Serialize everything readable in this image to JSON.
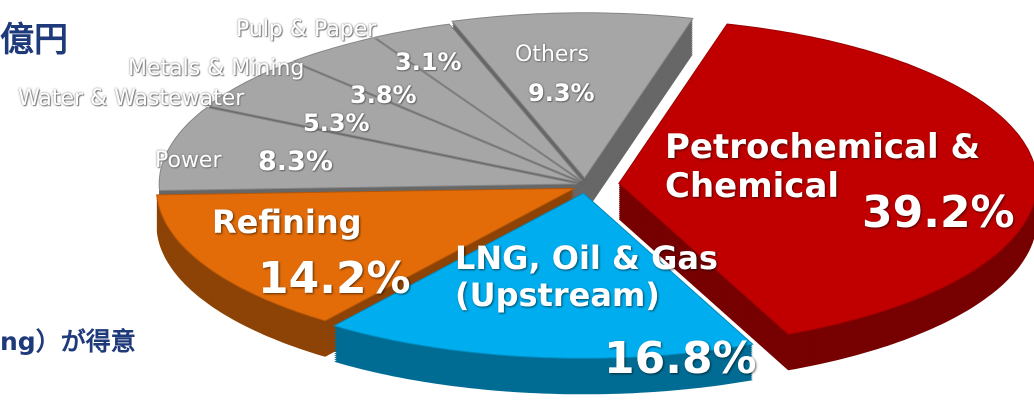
{
  "chart_data": {
    "type": "pie3d",
    "categories": [
      "Petrochemical & Chemical",
      "LNG, Oil & Gas (Upstream)",
      "Refining",
      "Power",
      "Water  & Wastewater",
      "Metals  & Mining",
      "Pulp  & Paper",
      "Others"
    ],
    "values": [
      39.2,
      16.8,
      14.2,
      8.3,
      5.3,
      3.8,
      3.1,
      9.3
    ],
    "value_labels": [
      "39.2%",
      "16.8%",
      "14.2%",
      "8.3%",
      "5.3%",
      "3.8%",
      "3.1%",
      "9.3%"
    ],
    "colors": [
      "#c00000",
      "#00aeef",
      "#e36c09",
      "#a6a6a6",
      "#a6a6a6",
      "#a6a6a6",
      "#a6a6a6",
      "#a6a6a6"
    ],
    "annotations": [
      "億円",
      "ng）が得意"
    ]
  }
}
